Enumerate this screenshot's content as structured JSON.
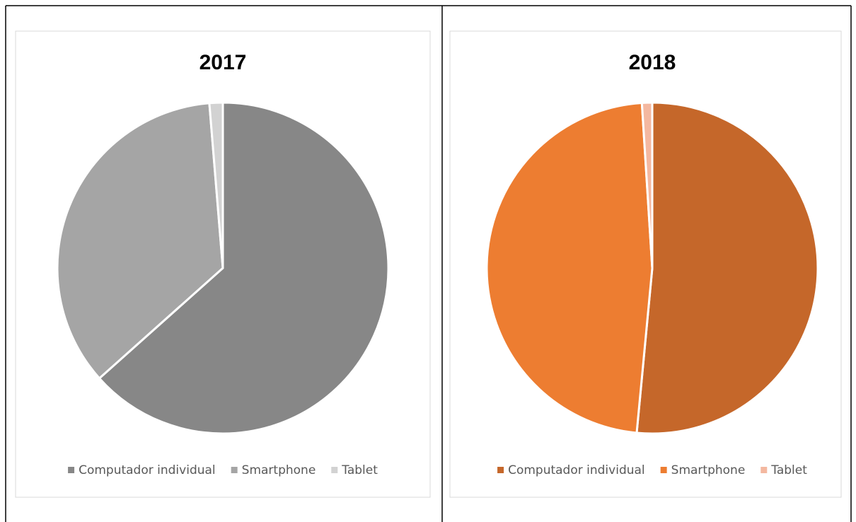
{
  "chart_data": [
    {
      "type": "pie",
      "title": "2017",
      "categories": [
        "Computador individual",
        "Smartphone",
        "Tablet"
      ],
      "values": [
        63.4,
        35.3,
        1.3
      ],
      "colors": [
        "#878787",
        "#a5a5a5",
        "#d2d2d2"
      ]
    },
    {
      "type": "pie",
      "title": "2018",
      "categories": [
        "Computador individual",
        "Smartphone",
        "Tablet"
      ],
      "values": [
        51.5,
        47.5,
        1.0
      ],
      "colors": [
        "#c5672a",
        "#ed7d31",
        "#f4b8a0"
      ]
    }
  ]
}
